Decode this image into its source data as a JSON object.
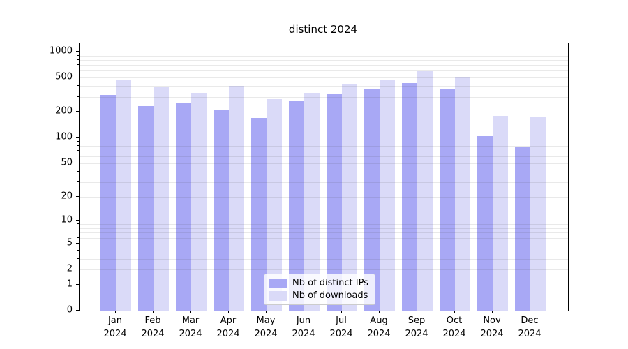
{
  "title": "distinct 2024",
  "colors": {
    "distinct_ips_bar": "#a8a8f5",
    "downloads_bar": "#dadaf8",
    "grid_major": "rgba(70,70,70,0.40)",
    "grid_minor": "rgba(70,70,70,0.12)",
    "axis": "#000000",
    "legend_border": "#cccccc"
  },
  "legend": {
    "items": [
      {
        "label": "Nb of distinct IPs",
        "series": 0
      },
      {
        "label": "Nb of downloads",
        "series": 1
      }
    ],
    "position": "lower center"
  },
  "chart_data": {
    "type": "bar",
    "title": "distinct 2024",
    "xlabel": "",
    "ylabel": "",
    "categories": [
      "Jan",
      "Feb",
      "Mar",
      "Apr",
      "May",
      "Jun",
      "Jul",
      "Aug",
      "Sep",
      "Oct",
      "Nov",
      "Dec"
    ],
    "category_year": "2024",
    "series": [
      {
        "name": "Nb of distinct IPs",
        "color": "#a8a8f5",
        "values": [
          315,
          232,
          255,
          211,
          170,
          273,
          329,
          368,
          433,
          368,
          104,
          77
        ]
      },
      {
        "name": "Nb of downloads",
        "color": "#dadaf8",
        "values": [
          466,
          387,
          335,
          401,
          282,
          335,
          425,
          463,
          597,
          508,
          181,
          172
        ]
      }
    ],
    "y_scale": "log10(value+1)",
    "ylim": [
      0,
      1250
    ],
    "y_ticks_labeled": [
      0,
      1,
      2,
      5,
      10,
      20,
      50,
      100,
      200,
      500,
      1000
    ],
    "y_grid_major": [
      1,
      10,
      100,
      1000
    ],
    "y_grid_minor": [
      2,
      3,
      4,
      5,
      6,
      7,
      8,
      9,
      20,
      30,
      40,
      50,
      60,
      70,
      80,
      90,
      200,
      300,
      400,
      500,
      600,
      700,
      800,
      900
    ],
    "grid": "both, drawn over bars",
    "legend_position": "lower center"
  }
}
